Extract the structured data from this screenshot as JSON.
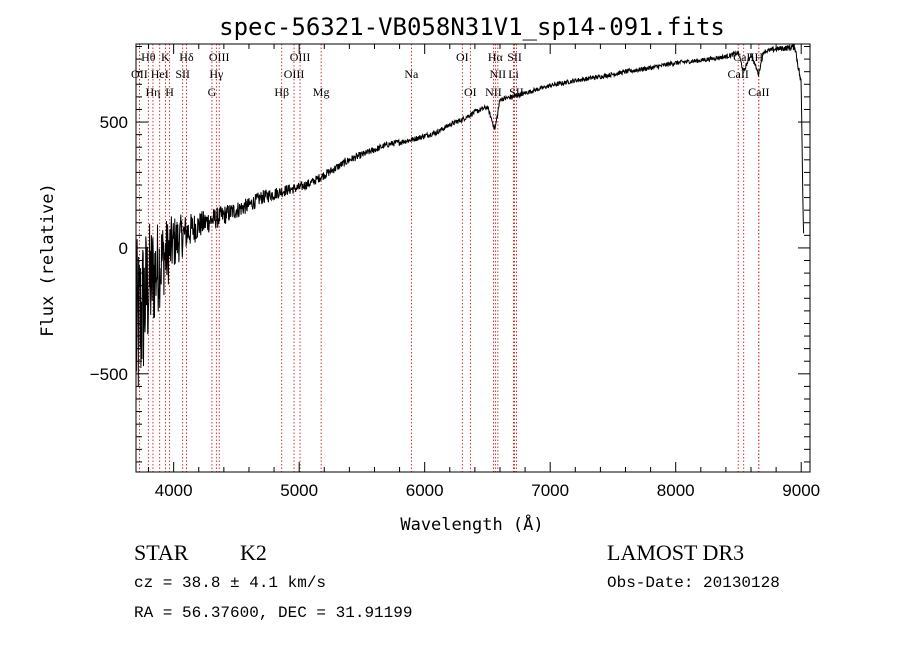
{
  "chart_data": {
    "type": "line",
    "title": "spec-56321-VB058N31V1_sp14-091.fits",
    "xlabel": "Wavelength (Å)",
    "ylabel": "Flux (relative)",
    "xlim": [
      3700,
      9070
    ],
    "ylim": [
      -890,
      810
    ],
    "xticks": [
      {
        "value": 4000,
        "label": "4000"
      },
      {
        "value": 5000,
        "label": "5000"
      },
      {
        "value": 6000,
        "label": "6000"
      },
      {
        "value": 7000,
        "label": "7000"
      },
      {
        "value": 8000,
        "label": "8000"
      },
      {
        "value": 9000,
        "label": "9000"
      }
    ],
    "yticks": [
      {
        "value": 500,
        "label": "500"
      },
      {
        "value": 0,
        "label": "0"
      },
      {
        "value": -500,
        "label": "−500"
      }
    ],
    "series": [
      {
        "name": "spectrum",
        "x": [
          3700,
          3750,
          3800,
          3850,
          3900,
          3950,
          4000,
          4100,
          4200,
          4300,
          4400,
          4500,
          4600,
          4700,
          4800,
          4900,
          5000,
          5100,
          5200,
          5300,
          5400,
          5500,
          5600,
          5700,
          5800,
          5900,
          6000,
          6100,
          6200,
          6300,
          6400,
          6500,
          6560,
          6600,
          6700,
          6800,
          6900,
          7000,
          7200,
          7400,
          7600,
          7800,
          8000,
          8200,
          8400,
          8500,
          8540,
          8600,
          8660,
          8700,
          8800,
          8900,
          8950,
          9000,
          9010,
          9020
        ],
        "y": [
          -350,
          -250,
          -150,
          -100,
          -50,
          -20,
          20,
          60,
          90,
          110,
          130,
          150,
          170,
          200,
          215,
          230,
          240,
          260,
          290,
          320,
          350,
          370,
          390,
          410,
          420,
          430,
          445,
          460,
          490,
          510,
          540,
          560,
          470,
          590,
          600,
          615,
          630,
          645,
          665,
          680,
          700,
          715,
          735,
          745,
          760,
          775,
          700,
          770,
          690,
          780,
          790,
          795,
          800,
          650,
          300,
          30
        ],
        "noise": [
          380,
          320,
          260,
          210,
          170,
          140,
          110,
          75,
          55,
          45,
          40,
          35,
          30,
          28,
          25,
          22,
          20,
          18,
          17,
          16,
          15,
          14,
          13,
          12,
          12,
          11,
          11,
          10,
          10,
          10,
          10,
          10,
          10,
          10,
          9,
          9,
          9,
          9,
          9,
          9,
          9,
          9,
          9,
          9,
          9,
          9,
          9,
          9,
          9,
          9,
          10,
          12,
          15,
          20,
          20,
          20
        ]
      }
    ],
    "line_markers": [
      {
        "label": "OII",
        "wavelength": 3727,
        "row": 1
      },
      {
        "label": "Hθ",
        "wavelength": 3798,
        "row": 0
      },
      {
        "label": "Hη",
        "wavelength": 3835,
        "row": 2
      },
      {
        "label": "HeI",
        "wavelength": 3889,
        "row": 1
      },
      {
        "label": "K",
        "wavelength": 3934,
        "row": 0
      },
      {
        "label": "H",
        "wavelength": 3968,
        "row": 2
      },
      {
        "label": "SII",
        "wavelength": 4072,
        "row": 1
      },
      {
        "label": "Hδ",
        "wavelength": 4102,
        "row": 0
      },
      {
        "label": "G",
        "wavelength": 4305,
        "row": 2
      },
      {
        "label": "Hγ",
        "wavelength": 4340,
        "row": 1
      },
      {
        "label": "OIII",
        "wavelength": 4363,
        "row": 0
      },
      {
        "label": "Hβ",
        "wavelength": 4861,
        "row": 2
      },
      {
        "label": "OIII",
        "wavelength": 4959,
        "row": 1
      },
      {
        "label": "OIII",
        "wavelength": 5007,
        "row": 0
      },
      {
        "label": "Mg",
        "wavelength": 5175,
        "row": 2
      },
      {
        "label": "Na",
        "wavelength": 5894,
        "row": 1
      },
      {
        "label": "OI",
        "wavelength": 6300,
        "row": 0
      },
      {
        "label": "OI",
        "wavelength": 6364,
        "row": 2
      },
      {
        "label": "NII",
        "wavelength": 6548,
        "row": 2
      },
      {
        "label": "Hα",
        "wavelength": 6563,
        "row": 0
      },
      {
        "label": "NII",
        "wavelength": 6583,
        "row": 1
      },
      {
        "label": "SII",
        "wavelength": 6716,
        "row": 0
      },
      {
        "label": "SII",
        "wavelength": 6731,
        "row": 2
      },
      {
        "label": "Li",
        "wavelength": 6708,
        "row": 1
      },
      {
        "label": "CaII",
        "wavelength": 8498,
        "row": 1
      },
      {
        "label": "CaII",
        "wavelength": 8542,
        "row": 0
      },
      {
        "label": "CaII",
        "wavelength": 8662,
        "row": 2
      },
      {
        "label": "H",
        "wavelength": 8662,
        "row": 0
      }
    ]
  },
  "info": {
    "object_class": "STAR",
    "subclass": "K2",
    "survey": "LAMOST DR3",
    "redshift_text": "cz = 38.8 ± 4.1 km/s",
    "obs_date_text": "Obs-Date: 20130128",
    "coordinates_text": "RA =  56.37600, DEC =  31.91199"
  },
  "colors": {
    "axis": "#000000",
    "spectrum": "#000000",
    "marker_line": "#cc0000",
    "background": "#ffffff"
  }
}
